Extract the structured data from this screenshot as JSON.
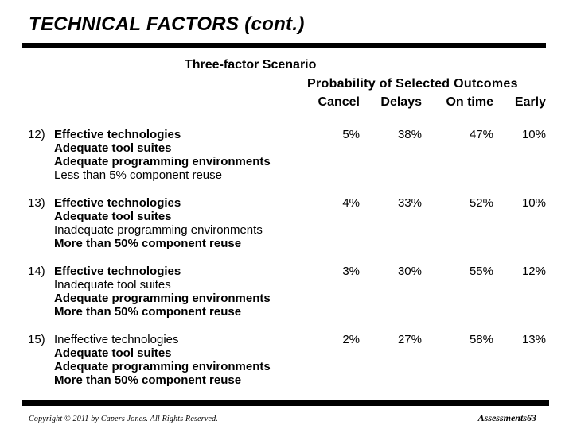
{
  "colors": {
    "background": "#ffffff",
    "text": "#000000"
  },
  "slide": {
    "title": "TECHNICAL FACTORS (cont.)",
    "scenario_heading": "Three-factor Scenario",
    "outcomes_heading": "Probability of Selected Outcomes",
    "columns": [
      "Cancel",
      "Delays",
      "On time",
      "Early"
    ],
    "rows": [
      {
        "number": "12)",
        "factors": [
          {
            "text": "Effective technologies",
            "bold": true
          },
          {
            "text": "Adequate tool suites",
            "bold": true
          },
          {
            "text": "Adequate programming environments",
            "bold": true
          },
          {
            "text": "Less than 5% component reuse",
            "bold": false
          }
        ],
        "values": [
          "5%",
          "38%",
          "47%",
          "10%"
        ]
      },
      {
        "number": "13)",
        "factors": [
          {
            "text": "Effective technologies",
            "bold": true
          },
          {
            "text": "Adequate tool suites",
            "bold": true
          },
          {
            "text": "Inadequate programming environments",
            "bold": false
          },
          {
            "text": "More than 50% component reuse",
            "bold": true
          }
        ],
        "values": [
          "4%",
          "33%",
          "52%",
          "10%"
        ]
      },
      {
        "number": "14)",
        "factors": [
          {
            "text": "Effective technologies",
            "bold": true
          },
          {
            "text": "Inadequate tool suites",
            "bold": false
          },
          {
            "text": "Adequate programming environments",
            "bold": true
          },
          {
            "text": "More than 50% component reuse",
            "bold": true
          }
        ],
        "values": [
          "3%",
          "30%",
          "55%",
          "12%"
        ]
      },
      {
        "number": "15)",
        "factors": [
          {
            "text": "Ineffective technologies",
            "bold": false
          },
          {
            "text": "Adequate tool suites",
            "bold": true
          },
          {
            "text": "Adequate programming environments",
            "bold": true
          },
          {
            "text": "More than 50% component reuse",
            "bold": true
          }
        ],
        "values": [
          "2%",
          "27%",
          "58%",
          "13%"
        ]
      }
    ],
    "footer": {
      "copyright": "Copyright © 2011 by Capers Jones.  All Rights Reserved.",
      "page_label": "Assessments63"
    }
  }
}
